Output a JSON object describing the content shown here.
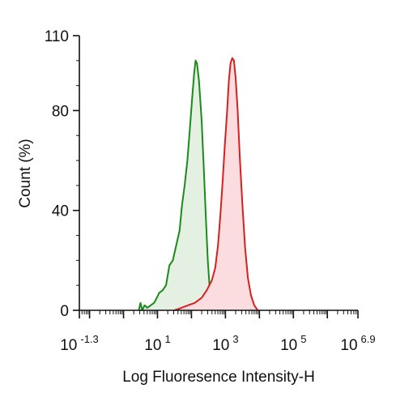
{
  "chart_data": {
    "type": "area",
    "xlabel": "Log Fluoresence Intensity-H",
    "ylabel": "Count  (%)",
    "x_scale": "log10",
    "xlim": [
      -1.3,
      6.9
    ],
    "ylim": [
      0,
      110
    ],
    "x_ticks": [
      {
        "base": "10",
        "exp": "-1.3",
        "value": -1.3
      },
      {
        "base": "10",
        "exp": "1",
        "value": 1
      },
      {
        "base": "10",
        "exp": "3",
        "value": 3
      },
      {
        "base": "10",
        "exp": "5",
        "value": 5
      },
      {
        "base": "10",
        "exp": "6.9",
        "value": 6.9
      }
    ],
    "y_ticks": [
      {
        "label": "0",
        "value": 0
      },
      {
        "label": "40",
        "value": 40
      },
      {
        "label": "80",
        "value": 80
      },
      {
        "label": "110",
        "value": 110
      }
    ],
    "series": [
      {
        "color": "#1a8a1a",
        "fill": "#e4f1e2",
        "points": [
          [
            0.45,
            0
          ],
          [
            0.5,
            3
          ],
          [
            0.55,
            0
          ],
          [
            0.62,
            2
          ],
          [
            0.7,
            1
          ],
          [
            0.8,
            2
          ],
          [
            0.9,
            3
          ],
          [
            0.98,
            5
          ],
          [
            1.05,
            7
          ],
          [
            1.15,
            8
          ],
          [
            1.25,
            10
          ],
          [
            1.3,
            14
          ],
          [
            1.35,
            18
          ],
          [
            1.45,
            20
          ],
          [
            1.55,
            26
          ],
          [
            1.65,
            32
          ],
          [
            1.72,
            42
          ],
          [
            1.8,
            50
          ],
          [
            1.88,
            60
          ],
          [
            1.95,
            72
          ],
          [
            2.02,
            85
          ],
          [
            2.08,
            95
          ],
          [
            2.12,
            100
          ],
          [
            2.16,
            99
          ],
          [
            2.22,
            92
          ],
          [
            2.3,
            76
          ],
          [
            2.36,
            58
          ],
          [
            2.42,
            38
          ],
          [
            2.48,
            20
          ],
          [
            2.53,
            10
          ],
          [
            2.6,
            4
          ],
          [
            2.68,
            1
          ],
          [
            2.75,
            0
          ]
        ]
      },
      {
        "color": "#d62020",
        "fill": "#fbdde0",
        "points": [
          [
            1.5,
            0
          ],
          [
            1.7,
            1
          ],
          [
            1.9,
            2
          ],
          [
            2.1,
            3
          ],
          [
            2.3,
            5
          ],
          [
            2.45,
            8
          ],
          [
            2.6,
            12
          ],
          [
            2.7,
            17
          ],
          [
            2.78,
            26
          ],
          [
            2.85,
            38
          ],
          [
            2.92,
            52
          ],
          [
            2.98,
            66
          ],
          [
            3.05,
            80
          ],
          [
            3.1,
            92
          ],
          [
            3.15,
            99
          ],
          [
            3.2,
            101
          ],
          [
            3.25,
            100
          ],
          [
            3.3,
            93
          ],
          [
            3.36,
            80
          ],
          [
            3.42,
            62
          ],
          [
            3.5,
            42
          ],
          [
            3.58,
            25
          ],
          [
            3.66,
            13
          ],
          [
            3.75,
            6
          ],
          [
            3.85,
            2
          ],
          [
            3.95,
            0
          ]
        ]
      }
    ]
  }
}
